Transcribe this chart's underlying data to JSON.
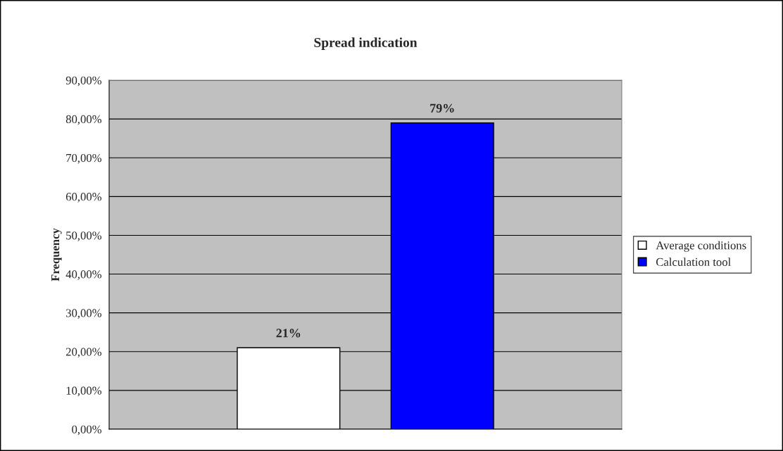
{
  "chart_data": {
    "type": "bar",
    "title": "Spread indication",
    "ylabel": "Frequency",
    "categories": [
      null
    ],
    "series": [
      {
        "name": "Average conditions",
        "color": "#ffffff",
        "values": [
          21
        ],
        "value_labels": [
          "21%"
        ]
      },
      {
        "name": "Calculation tool",
        "color": "#0000ff",
        "values": [
          79
        ],
        "value_labels": [
          "79%"
        ]
      }
    ],
    "ylim": [
      0,
      90
    ],
    "yticks": [
      {
        "value": 0,
        "label": "0,00%"
      },
      {
        "value": 10,
        "label": "10,00%"
      },
      {
        "value": 20,
        "label": "20,00%"
      },
      {
        "value": 30,
        "label": "30,00%"
      },
      {
        "value": 40,
        "label": "40,00%"
      },
      {
        "value": 50,
        "label": "50,00%"
      },
      {
        "value": 60,
        "label": "60,00%"
      },
      {
        "value": 70,
        "label": "70,00%"
      },
      {
        "value": 80,
        "label": "80,00%"
      },
      {
        "value": 90,
        "label": "90,00%"
      }
    ],
    "grid": "y",
    "legend": "right"
  }
}
